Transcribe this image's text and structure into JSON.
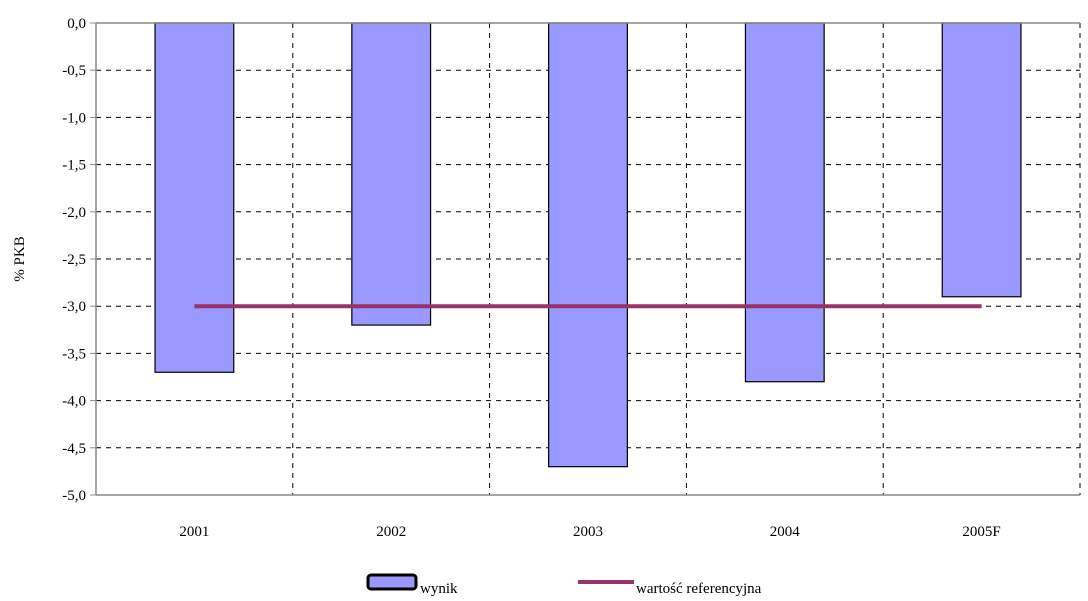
{
  "chart_data": {
    "type": "bar",
    "categories": [
      "2001",
      "2002",
      "2003",
      "2004",
      "2005F"
    ],
    "series": [
      {
        "name": "wynik",
        "kind": "bar",
        "values": [
          -3.7,
          -3.2,
          -4.7,
          -3.8,
          -2.9
        ],
        "color": "#9999ff"
      },
      {
        "name": "wartość referencyjna",
        "kind": "line",
        "values": [
          -3.0,
          -3.0,
          -3.0,
          -3.0,
          -3.0
        ],
        "color": "#993366"
      }
    ],
    "ylabel": "% PKB",
    "ylim": [
      -5.0,
      0.0
    ],
    "ytick_step": 0.5,
    "yticks": [
      "0,0",
      "-0,5",
      "-1,0",
      "-1,5",
      "-2,0",
      "-2,5",
      "-3,0",
      "-3,5",
      "-4,0",
      "-4,5",
      "-5,0"
    ],
    "grid": true,
    "legend_position": "bottom"
  }
}
